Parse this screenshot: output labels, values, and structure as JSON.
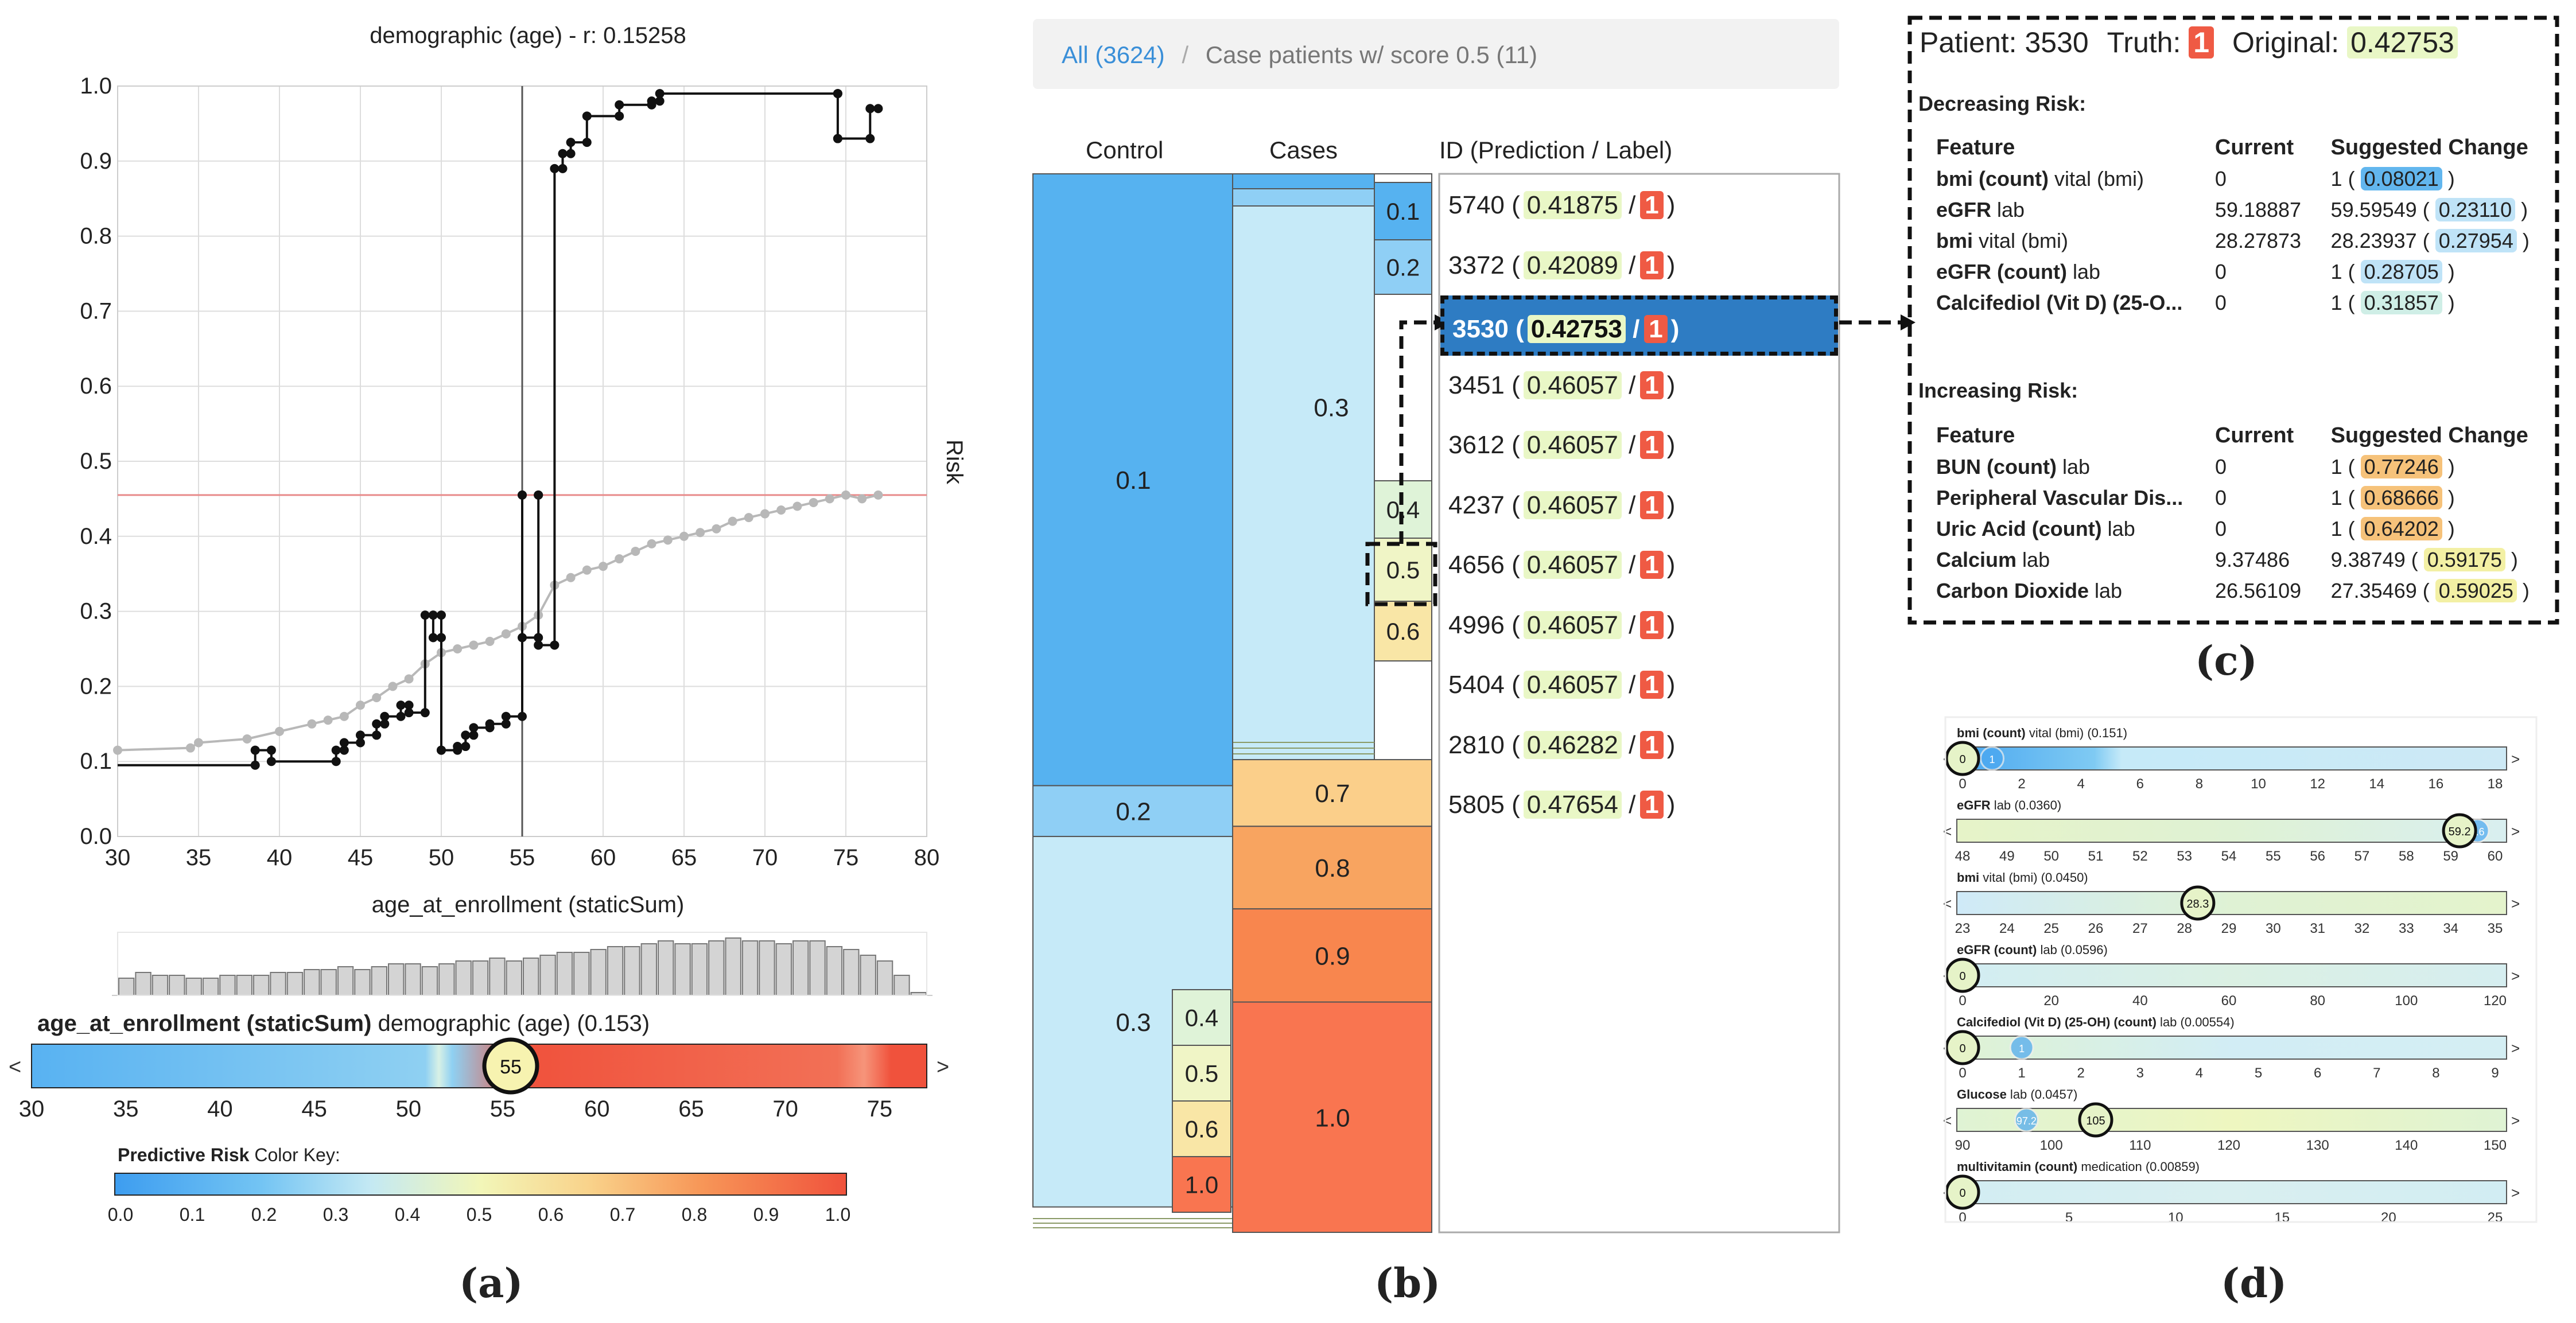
{
  "panel_labels": {
    "a": "(a)",
    "b": "(b)",
    "c": "(c)",
    "d": "(d)"
  },
  "panel_a": {
    "plot_title": "demographic (age) - r: 0.15258",
    "xlabel": "age_at_enrollment (staticSum)",
    "ylabel": "Risk",
    "x_ticks": [
      "30",
      "35",
      "40",
      "45",
      "50",
      "55",
      "60",
      "65",
      "70",
      "75",
      "80"
    ],
    "y_ticks": [
      "0.0",
      "0.1",
      "0.2",
      "0.3",
      "0.4",
      "0.5",
      "0.6",
      "0.7",
      "0.8",
      "0.9",
      "1.0"
    ],
    "slider_title_bold": "age_at_enrollment (staticSum)",
    "slider_title_rest": " demographic (age) (0.153)",
    "slider_value": "55",
    "slider_left": "<",
    "slider_right": ">",
    "slider_ticks": [
      "30",
      "35",
      "40",
      "45",
      "50",
      "55",
      "60",
      "65",
      "70",
      "75"
    ],
    "colorkey_title_bold": "Predictive Risk",
    "colorkey_title_rest": " Color Key:",
    "colorkey_ticks": [
      "0.0",
      "0.1",
      "0.2",
      "0.3",
      "0.4",
      "0.5",
      "0.6",
      "0.7",
      "0.8",
      "0.9",
      "1.0"
    ],
    "colors": {
      "dark_line": "#111111",
      "grey_line": "#b8b8b8",
      "ref_line": "#e88a8a"
    }
  },
  "chart_data": [
    {
      "type": "line",
      "title": "demographic (age) - r: 0.15258",
      "xlabel": "age_at_enrollment (staticSum)",
      "ylabel": "Risk",
      "xlim": [
        30,
        80
      ],
      "ylim": [
        0.0,
        1.0
      ],
      "grid": true,
      "reference_lines": {
        "vertical_x": 55,
        "horizontal_y": 0.455
      },
      "series": [
        {
          "name": "",
          "x": [
            30,
            38.5,
            38.5,
            39.5,
            39.5,
            43.5,
            43.5,
            44,
            44,
            45,
            45,
            46,
            46,
            46.5,
            46.5,
            47.5,
            47.5,
            48,
            48,
            49,
            49,
            49.5,
            49.5,
            50,
            50,
            50,
            50,
            51,
            51,
            51.5,
            51.5,
            52,
            52,
            53,
            53,
            54,
            54,
            55,
            55,
            55,
            55,
            56,
            56,
            56,
            56,
            57,
            57,
            57.5,
            57.5,
            58,
            58,
            59,
            59,
            61,
            61,
            63,
            63,
            63.5,
            63.5,
            74.5,
            74.5,
            74.5,
            74.5,
            76.5,
            76.5,
            77
          ],
          "y": [
            0.095,
            0.095,
            0.115,
            0.115,
            0.1,
            0.1,
            0.115,
            0.115,
            0.125,
            0.125,
            0.135,
            0.135,
            0.15,
            0.15,
            0.16,
            0.16,
            0.175,
            0.175,
            0.165,
            0.165,
            0.295,
            0.295,
            0.265,
            0.265,
            0.295,
            0.115,
            0.115,
            0.115,
            0.12,
            0.12,
            0.135,
            0.135,
            0.145,
            0.145,
            0.15,
            0.15,
            0.16,
            0.16,
            0.455,
            0.455,
            0.265,
            0.265,
            0.455,
            0.455,
            0.255,
            0.255,
            0.89,
            0.89,
            0.91,
            0.91,
            0.925,
            0.925,
            0.96,
            0.96,
            0.975,
            0.975,
            0.98,
            0.98,
            0.99,
            0.99,
            0.99,
            0.93,
            0.93,
            0.93,
            0.97,
            0.97
          ]
        },
        {
          "name": "",
          "x": [
            30,
            34.5,
            35,
            38,
            40,
            42,
            43,
            44,
            45,
            46,
            47,
            48,
            49,
            50,
            51,
            52,
            53,
            54,
            55,
            56,
            57,
            58,
            59,
            60,
            61,
            62,
            63,
            64,
            65,
            66,
            67,
            68,
            69,
            70,
            71,
            72,
            73,
            74,
            75,
            76,
            77
          ],
          "y": [
            0.115,
            0.118,
            0.125,
            0.13,
            0.14,
            0.15,
            0.155,
            0.16,
            0.175,
            0.185,
            0.2,
            0.21,
            0.23,
            0.245,
            0.25,
            0.255,
            0.26,
            0.27,
            0.28,
            0.295,
            0.335,
            0.345,
            0.355,
            0.36,
            0.37,
            0.38,
            0.39,
            0.395,
            0.4,
            0.405,
            0.41,
            0.42,
            0.425,
            0.43,
            0.435,
            0.44,
            0.445,
            0.45,
            0.455,
            0.45,
            0.455
          ]
        }
      ]
    },
    {
      "type": "bar",
      "title": "age_at_enrollment (staticSum)",
      "categories": [
        "30",
        "31",
        "32",
        "33",
        "34",
        "35",
        "36",
        "37",
        "38",
        "39",
        "40",
        "41",
        "42",
        "43",
        "44",
        "45",
        "46",
        "47",
        "48",
        "49",
        "50",
        "51",
        "52",
        "53",
        "54",
        "55",
        "56",
        "57",
        "58",
        "59",
        "60",
        "61",
        "62",
        "63",
        "64",
        "65",
        "66",
        "67",
        "68",
        "69",
        "70",
        "71",
        "72",
        "73",
        "74",
        "75",
        "76",
        "77"
      ],
      "values": [
        0.3,
        0.4,
        0.35,
        0.35,
        0.3,
        0.3,
        0.35,
        0.35,
        0.35,
        0.4,
        0.4,
        0.45,
        0.45,
        0.5,
        0.45,
        0.5,
        0.55,
        0.55,
        0.5,
        0.55,
        0.6,
        0.6,
        0.65,
        0.6,
        0.65,
        0.7,
        0.75,
        0.75,
        0.8,
        0.85,
        0.85,
        0.9,
        0.95,
        0.9,
        0.9,
        0.95,
        1.0,
        0.95,
        0.95,
        0.9,
        0.95,
        0.95,
        0.85,
        0.8,
        0.7,
        0.6,
        0.35,
        0.05
      ]
    },
    {
      "type": "bar",
      "title": "Predictive Risk Color Key",
      "categories": [
        "0.0",
        "0.1",
        "0.2",
        "0.3",
        "0.4",
        "0.5",
        "0.6",
        "0.7",
        "0.8",
        "0.9",
        "1.0"
      ],
      "values": [
        0,
        0.1,
        0.2,
        0.3,
        0.4,
        0.5,
        0.6,
        0.7,
        0.8,
        0.9,
        1.0
      ]
    }
  ],
  "panel_b": {
    "breadcrumb_all": "All (3624)",
    "breadcrumb_sep": "/",
    "breadcrumb_current": "Case patients w/ score 0.5 (11)",
    "col_control": "Control",
    "col_cases": "Cases",
    "col_id": "ID (Prediction / Label)",
    "control_blocks": [
      {
        "label": "0.1",
        "frac": 0.578,
        "color": "#56b2f0"
      },
      {
        "label": "0.2",
        "frac": 0.048,
        "color": "#8fcff5"
      },
      {
        "label": "0.3",
        "frac": 0.35,
        "color": "#c6eaf8"
      }
    ],
    "control_sub_blocks": [
      {
        "label": "0.4",
        "color": "#dff3d8"
      },
      {
        "label": "0.5",
        "color": "#f0f5c6"
      },
      {
        "label": "0.6",
        "color": "#f9e6a6"
      },
      {
        "label": "1.0",
        "color": "#f97550"
      }
    ],
    "cases_blocks": [
      {
        "label": "0.3",
        "frac": 0.45,
        "color": "#c6eaf8"
      },
      {
        "label": "0.7",
        "frac": 0.063,
        "color": "#fbcf8a"
      },
      {
        "label": "0.8",
        "frac": 0.078,
        "color": "#f8a460"
      },
      {
        "label": "0.9",
        "frac": 0.088,
        "color": "#f8864e"
      },
      {
        "label": "1.0",
        "frac": 0.31,
        "color": "#f97550"
      }
    ],
    "cases_side_blocks": [
      {
        "label": "0.1",
        "color": "#56b2f0"
      },
      {
        "label": "0.2",
        "color": "#8fcff5"
      },
      {
        "label": "0.4",
        "color": "#dff3d8"
      },
      {
        "label": "0.5",
        "color": "#f0f5c6"
      },
      {
        "label": "0.6",
        "color": "#f9e6a6"
      }
    ],
    "rows": [
      {
        "id": "5740",
        "pred": "0.41875",
        "label": "1"
      },
      {
        "id": "3372",
        "pred": "0.42089",
        "label": "1"
      },
      {
        "id": "3530",
        "pred": "0.42753",
        "label": "1"
      },
      {
        "id": "3451",
        "pred": "0.46057",
        "label": "1"
      },
      {
        "id": "3612",
        "pred": "0.46057",
        "label": "1"
      },
      {
        "id": "4237",
        "pred": "0.46057",
        "label": "1"
      },
      {
        "id": "4656",
        "pred": "0.46057",
        "label": "1"
      },
      {
        "id": "4996",
        "pred": "0.46057",
        "label": "1"
      },
      {
        "id": "5404",
        "pred": "0.46057",
        "label": "1"
      },
      {
        "id": "2810",
        "pred": "0.46282",
        "label": "1"
      },
      {
        "id": "5805",
        "pred": "0.47654",
        "label": "1"
      }
    ],
    "row_open": " (",
    "row_mid": " /",
    "row_close": ")"
  },
  "panel_c": {
    "patient_label": "Patient:",
    "patient_id": "3530",
    "truth_label": "Truth:",
    "truth_value": "1",
    "original_label": "Original:",
    "original_value": "0.42753",
    "decreasing_title": "Decreasing Risk:",
    "increasing_title": "Increasing Risk:",
    "col_feature": "Feature",
    "col_current": "Current",
    "col_suggested": "Suggested Change",
    "decreasing_rows": [
      {
        "feature_bold": "bmi (count)",
        "feature_rest": " vital (bmi)",
        "current": "0",
        "suggested": "1",
        "score": "0.08021",
        "tone": "blue"
      },
      {
        "feature_bold": "eGFR",
        "feature_rest": " lab",
        "current": "59.18887",
        "suggested": "59.59549",
        "score": "0.23110",
        "tone": "blue"
      },
      {
        "feature_bold": "bmi",
        "feature_rest": " vital (bmi)",
        "current": "28.27873",
        "suggested": "28.23937",
        "score": "0.27954",
        "tone": "blue"
      },
      {
        "feature_bold": "eGFR (count)",
        "feature_rest": " lab",
        "current": "0",
        "suggested": "1",
        "score": "0.28705",
        "tone": "blue"
      },
      {
        "feature_bold": "Calcifediol (Vit D) (25-O...",
        "feature_rest": "",
        "current": "0",
        "suggested": "1",
        "score": "0.31857",
        "tone": "blue"
      }
    ],
    "increasing_rows": [
      {
        "feature_bold": "BUN (count)",
        "feature_rest": " lab",
        "current": "0",
        "suggested": "1",
        "score": "0.77246",
        "tone": "orange"
      },
      {
        "feature_bold": "Peripheral Vascular Dis...",
        "feature_rest": "",
        "current": "0",
        "suggested": "1",
        "score": "0.68666",
        "tone": "orange"
      },
      {
        "feature_bold": "Uric Acid (count)",
        "feature_rest": " lab",
        "current": "0",
        "suggested": "1",
        "score": "0.64202",
        "tone": "orange"
      },
      {
        "feature_bold": "Calcium",
        "feature_rest": " lab",
        "current": "9.37486",
        "suggested": "9.38749",
        "score": "0.59175",
        "tone": "yellow"
      },
      {
        "feature_bold": "Carbon Dioxide",
        "feature_rest": " lab",
        "current": "26.56109",
        "suggested": "27.35469",
        "score": "0.59025",
        "tone": "yellow"
      }
    ],
    "open_paren": " ( ",
    "close_paren": " )"
  },
  "panel_d": {
    "sliders": [
      {
        "title_bold": "bmi (count)",
        "title_rest": " vital (bmi) (0.151)",
        "ticks": [
          "0",
          "2",
          "4",
          "6",
          "8",
          "10",
          "12",
          "14",
          "16",
          "18"
        ],
        "circle_value": "0",
        "alt_value": "1"
      },
      {
        "title_bold": "eGFR",
        "title_rest": " lab (0.0360)",
        "ticks": [
          "48",
          "49",
          "50",
          "51",
          "52",
          "53",
          "54",
          "55",
          "56",
          "57",
          "58",
          "59",
          "60"
        ],
        "circle_value": "59.2",
        "alt_value": "9.6"
      },
      {
        "title_bold": "bmi",
        "title_rest": " vital (bmi) (0.0450)",
        "ticks": [
          "23",
          "24",
          "25",
          "26",
          "27",
          "28",
          "29",
          "30",
          "31",
          "32",
          "33",
          "34",
          "35"
        ],
        "circle_value": "28.3",
        "alt_value": ""
      },
      {
        "title_bold": "eGFR (count)",
        "title_rest": " lab (0.0596)",
        "ticks": [
          "0",
          "20",
          "40",
          "60",
          "80",
          "100",
          "120"
        ],
        "circle_value": "0",
        "alt_value": ""
      },
      {
        "title_bold": "Calcifediol (Vit D) (25-OH) (count)",
        "title_rest": " lab (0.00554)",
        "ticks": [
          "0",
          "1",
          "2",
          "3",
          "4",
          "5",
          "6",
          "7",
          "8",
          "9"
        ],
        "circle_value": "0",
        "alt_value": "1"
      },
      {
        "title_bold": "Glucose",
        "title_rest": " lab (0.0457)",
        "ticks": [
          "90",
          "100",
          "110",
          "120",
          "130",
          "140",
          "150"
        ],
        "circle_value": "105",
        "alt_value": "97.2"
      },
      {
        "title_bold": "multivitamin (count)",
        "title_rest": " medication (0.00859)",
        "ticks": [
          "0",
          "5",
          "10",
          "15",
          "20",
          "25"
        ],
        "circle_value": "0",
        "alt_value": ""
      }
    ],
    "left_arrow": "<",
    "right_arrow": ">"
  }
}
